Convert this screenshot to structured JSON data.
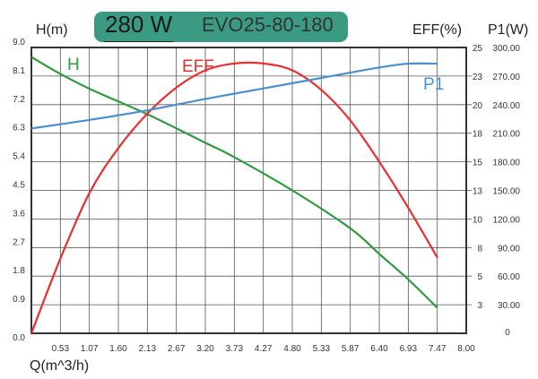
{
  "header": {
    "power": "280 W",
    "model": "EVO25-80-180"
  },
  "chart_data": {
    "type": "line",
    "xlabel": "Q(m^3/h)",
    "ylabel_left": "H(m)",
    "ylabel_right1": "EFF(%)",
    "ylabel_right2": "P1(W)",
    "xlim": [
      0,
      8
    ],
    "ylim_left": [
      0,
      9
    ],
    "ylim_eff": [
      0,
      25
    ],
    "ylim_p1": [
      0,
      300
    ],
    "grid": true,
    "x_ticks": [
      "0.53",
      "1.07",
      "1.60",
      "2.13",
      "2.67",
      "3.20",
      "3.73",
      "4.27",
      "4.80",
      "5.33",
      "5.87",
      "6.40",
      "6.93",
      "7.47",
      "8.00"
    ],
    "y_ticks_left": [
      "0.0",
      "0.9",
      "1.8",
      "2.7",
      "3.6",
      "4.5",
      "5.4",
      "6.3",
      "7.2",
      "8.1",
      "9.0"
    ],
    "y_ticks_eff": [
      "",
      "3",
      "5",
      "8",
      "10",
      "13",
      "15",
      "18",
      "20",
      "23",
      "25"
    ],
    "y_ticks_p1": [
      "0",
      "30.00",
      "60.00",
      "90.00",
      "120.00",
      "150.00",
      "180.00",
      "210.00",
      "240.00",
      "270.00",
      "300.00"
    ],
    "series": [
      {
        "name": "H",
        "axis": "left",
        "color": "#2e9a3e",
        "x": [
          0,
          0.5,
          1.07,
          2.13,
          3.2,
          3.73,
          4.8,
          5.87,
          6.4,
          6.93,
          7.47
        ],
        "y": [
          8.7,
          8.2,
          7.7,
          6.9,
          6.0,
          5.55,
          4.5,
          3.3,
          2.5,
          1.7,
          0.8
        ]
      },
      {
        "name": "EFF",
        "axis": "eff",
        "color": "#e8302e",
        "x": [
          0,
          0.53,
          1.07,
          1.6,
          2.13,
          2.67,
          3.2,
          3.73,
          4.27,
          4.8,
          5.33,
          5.87,
          6.4,
          6.93,
          7.47
        ],
        "y": [
          0,
          6.5,
          12.3,
          16.2,
          19.2,
          21.5,
          23.0,
          23.6,
          23.6,
          23.0,
          21.3,
          18.6,
          15.0,
          11.0,
          6.6
        ]
      },
      {
        "name": "P1",
        "axis": "p1",
        "color": "#4a90cf",
        "x": [
          0,
          1.07,
          2.13,
          3.2,
          4.27,
          5.33,
          6.4,
          6.93,
          7.47
        ],
        "y": [
          215,
          224,
          234,
          246,
          257,
          268,
          279,
          283,
          283
        ]
      }
    ]
  }
}
